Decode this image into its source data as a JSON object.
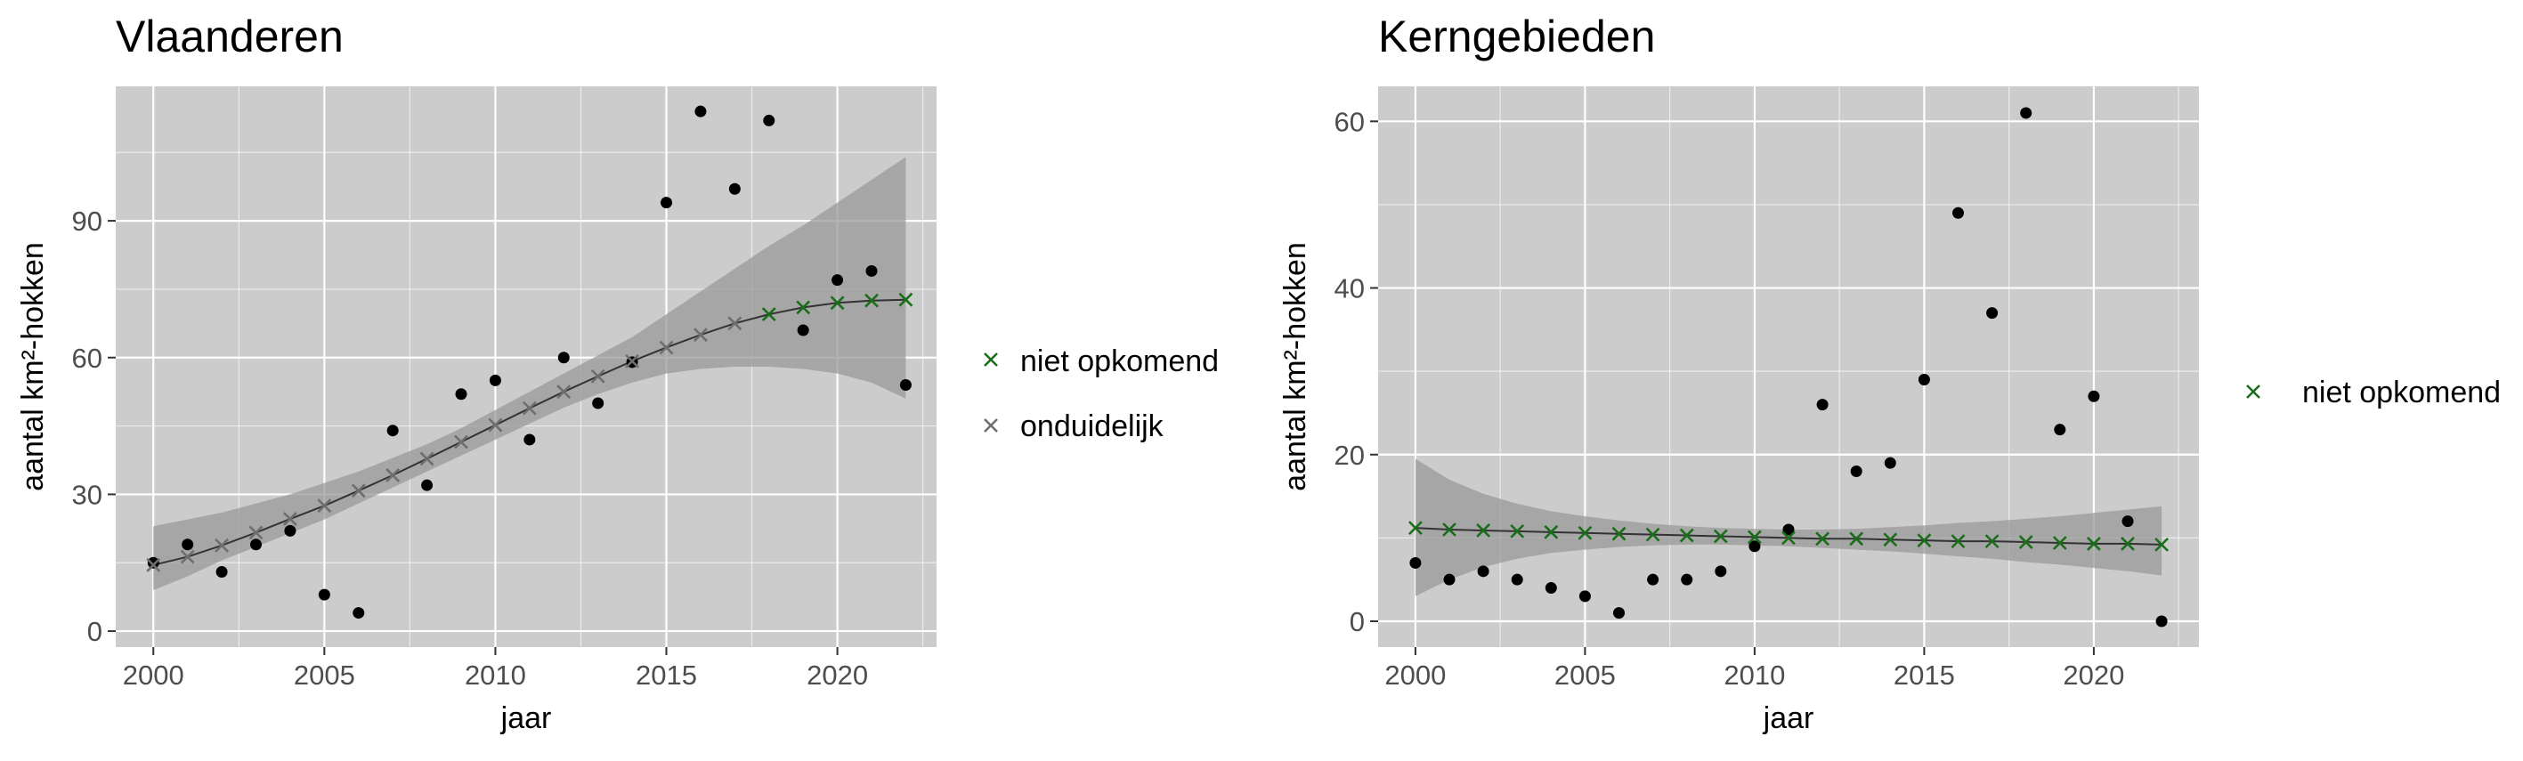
{
  "theme": {
    "panel_bg": "#cccccc",
    "grid_color": "#ffffff",
    "ribbon_color": "#999999",
    "point_color": "#000000",
    "cross_green": "#1a6e1a",
    "cross_grey": "#6e6e6e",
    "line_color": "#333333",
    "text_color": "#000000",
    "tick_text_color": "#4d4d4d"
  },
  "chart_data": [
    {
      "type": "scatter",
      "title": "Vlaanderen",
      "xlabel": "jaar",
      "ylabel": "aantal km²-hokken",
      "xlim": [
        1998.9,
        2022.9
      ],
      "ylim": [
        -3.5,
        119.5
      ],
      "xticks": [
        2000,
        2005,
        2010,
        2015,
        2020
      ],
      "yticks": [
        0,
        30,
        60,
        90
      ],
      "grid": true,
      "legend_position": "right",
      "observed": {
        "x": [
          2000,
          2001,
          2002,
          2003,
          2004,
          2005,
          2006,
          2007,
          2008,
          2009,
          2010,
          2011,
          2012,
          2013,
          2014,
          2015,
          2016,
          2017,
          2018,
          2019,
          2020,
          2021,
          2022
        ],
        "y": [
          15,
          19,
          13,
          19,
          22,
          8,
          4,
          44,
          32,
          52,
          55,
          42,
          60,
          50,
          59,
          94,
          114,
          97,
          112,
          66,
          77,
          79,
          54
        ]
      },
      "fitted": {
        "x": [
          2000,
          2001,
          2002,
          2003,
          2004,
          2005,
          2006,
          2007,
          2008,
          2009,
          2010,
          2011,
          2012,
          2013,
          2014,
          2015,
          2016,
          2017,
          2018,
          2019,
          2020,
          2021,
          2022
        ],
        "y": [
          14.5,
          16.3,
          18.8,
          21.6,
          24.6,
          27.5,
          30.8,
          34.2,
          37.8,
          41.5,
          45.2,
          48.9,
          52.5,
          55.9,
          59.2,
          62.2,
          65.0,
          67.5,
          69.5,
          71.0,
          72.0,
          72.5,
          72.7
        ],
        "lower": [
          9.0,
          12.0,
          15.5,
          18.5,
          21.5,
          24.5,
          28.0,
          31.5,
          35.0,
          38.5,
          42.0,
          45.5,
          49.0,
          52.0,
          54.5,
          56.5,
          57.5,
          58.0,
          58.0,
          57.5,
          56.5,
          54.5,
          51.0
        ],
        "upper": [
          23.0,
          24.5,
          26.0,
          28.0,
          30.0,
          32.5,
          35.0,
          38.0,
          41.0,
          44.5,
          48.5,
          52.5,
          56.5,
          60.5,
          64.5,
          69.5,
          74.5,
          79.5,
          84.5,
          89.0,
          94.0,
          99.0,
          104.0
        ]
      },
      "series": [
        {
          "name": "niet opkomend",
          "color": "#1a6e1a",
          "x": [
            2018,
            2019,
            2020,
            2021,
            2022
          ]
        },
        {
          "name": "onduidelijk",
          "color": "#6e6e6e",
          "x": [
            2000,
            2001,
            2002,
            2003,
            2004,
            2005,
            2006,
            2007,
            2008,
            2009,
            2010,
            2011,
            2012,
            2013,
            2014,
            2015,
            2016,
            2017
          ]
        }
      ]
    },
    {
      "type": "scatter",
      "title": "Kerngebieden",
      "xlabel": "jaar",
      "ylabel": "aantal km²-hokken",
      "xlim": [
        1998.9,
        2023.1
      ],
      "ylim": [
        -3.1,
        64.2
      ],
      "xticks": [
        2000,
        2005,
        2010,
        2015,
        2020
      ],
      "yticks": [
        0,
        20,
        40,
        60
      ],
      "grid": true,
      "legend_position": "right",
      "observed": {
        "x": [
          2000,
          2001,
          2002,
          2003,
          2004,
          2005,
          2006,
          2007,
          2008,
          2009,
          2010,
          2011,
          2012,
          2013,
          2014,
          2015,
          2016,
          2017,
          2018,
          2019,
          2020,
          2021,
          2022
        ],
        "y": [
          7,
          5,
          6,
          5,
          4,
          3,
          1,
          5,
          5,
          6,
          9,
          11,
          26,
          18,
          19,
          29,
          49,
          37,
          61,
          23,
          27,
          12,
          0
        ]
      },
      "fitted": {
        "x": [
          2000,
          2001,
          2002,
          2003,
          2004,
          2005,
          2006,
          2007,
          2008,
          2009,
          2010,
          2011,
          2012,
          2013,
          2014,
          2015,
          2016,
          2017,
          2018,
          2019,
          2020,
          2021,
          2022
        ],
        "y": [
          11.2,
          11.0,
          10.9,
          10.8,
          10.7,
          10.6,
          10.5,
          10.4,
          10.3,
          10.2,
          10.1,
          10.0,
          9.9,
          9.9,
          9.8,
          9.7,
          9.6,
          9.6,
          9.5,
          9.4,
          9.3,
          9.3,
          9.2
        ],
        "lower": [
          3.0,
          5.0,
          6.5,
          7.5,
          8.2,
          8.6,
          8.9,
          9.1,
          9.2,
          9.2,
          9.1,
          9.0,
          8.8,
          8.6,
          8.4,
          8.1,
          7.8,
          7.5,
          7.1,
          6.8,
          6.4,
          6.0,
          5.5
        ],
        "upper": [
          19.5,
          17.0,
          15.3,
          14.1,
          13.2,
          12.6,
          12.1,
          11.7,
          11.4,
          11.2,
          11.1,
          11.0,
          11.0,
          11.1,
          11.3,
          11.5,
          11.8,
          12.0,
          12.3,
          12.6,
          13.0,
          13.4,
          13.8
        ]
      },
      "series": [
        {
          "name": "niet opkomend",
          "color": "#1a6e1a",
          "x": [
            2000,
            2001,
            2002,
            2003,
            2004,
            2005,
            2006,
            2007,
            2008,
            2009,
            2010,
            2011,
            2012,
            2013,
            2014,
            2015,
            2016,
            2017,
            2018,
            2019,
            2020,
            2021,
            2022
          ]
        }
      ]
    }
  ]
}
